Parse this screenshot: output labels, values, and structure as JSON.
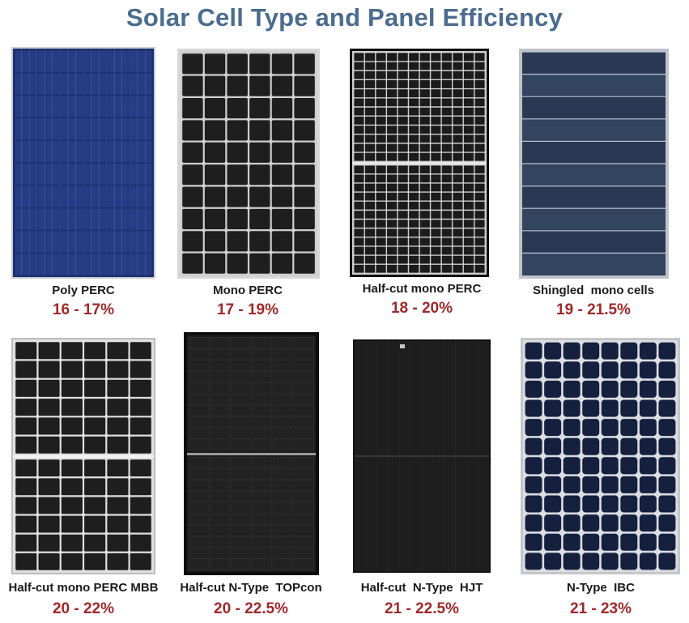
{
  "title": "Solar Cell Type and Panel Efficiency",
  "colors": {
    "title": "#4a6c8f",
    "efficiency": "#a0282a",
    "label": "#1a1a1a"
  },
  "panels": [
    {
      "label": "Poly PERC",
      "efficiency": "16 - 17%",
      "style": "poly-blue"
    },
    {
      "label": "Mono PERC",
      "efficiency": "17 - 19%",
      "style": "mono-black"
    },
    {
      "label": "Half-cut mono PERC",
      "efficiency": "18 - 20%",
      "style": "half-cut-black"
    },
    {
      "label": "Shingled  mono cells",
      "efficiency": "19 - 21.5%",
      "style": "shingled-blue"
    },
    {
      "label": "Half-cut mono PERC MBB",
      "efficiency": "20 - 22%",
      "style": "half-cut-mbb"
    },
    {
      "label": "Half-cut N-Type  TOPcon",
      "efficiency": "20 - 22.5%",
      "style": "topcon"
    },
    {
      "label": "Half-cut  N-Type  HJT",
      "efficiency": "21 - 22.5%",
      "style": "hjt-black"
    },
    {
      "label": "N-Type  IBC",
      "efficiency": "21 - 23%",
      "style": "ibc-blue"
    }
  ]
}
